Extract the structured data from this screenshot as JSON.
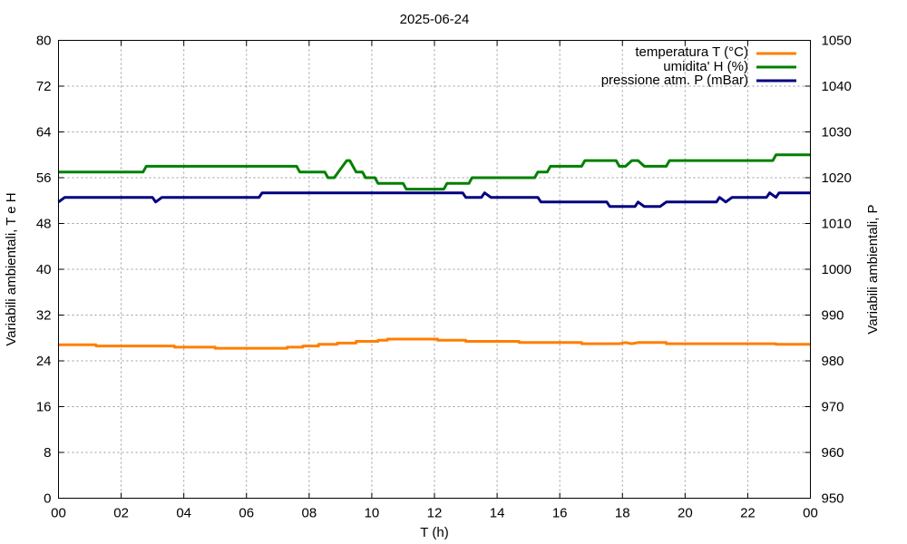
{
  "chart_data": {
    "type": "line",
    "title": "2025-06-24",
    "xlabel": "T (h)",
    "ylabel_left": "Variabili ambientali, T e H",
    "ylabel_right": "Variabili ambientali, P",
    "xlim": [
      0,
      24
    ],
    "ylim_left": [
      0,
      80
    ],
    "ylim_right": [
      950,
      1050
    ],
    "x_ticks": [
      "00",
      "02",
      "04",
      "06",
      "08",
      "10",
      "12",
      "14",
      "16",
      "18",
      "20",
      "22",
      "00"
    ],
    "y_ticks_left": [
      "0",
      "8",
      "16",
      "24",
      "32",
      "40",
      "48",
      "56",
      "64",
      "72",
      "80"
    ],
    "y_ticks_right": [
      "950",
      "960",
      "970",
      "980",
      "990",
      "1000",
      "1010",
      "1020",
      "1030",
      "1040",
      "1050"
    ],
    "grid": true,
    "legend_position": "top-right",
    "series": [
      {
        "name": "temperatura T (°C)",
        "axis": "left",
        "color": "#ff7f00",
        "points": [
          [
            0.0,
            26.8
          ],
          [
            1.2,
            26.8
          ],
          [
            1.2,
            26.6
          ],
          [
            3.7,
            26.6
          ],
          [
            3.7,
            26.4
          ],
          [
            5.0,
            26.4
          ],
          [
            5.0,
            26.2
          ],
          [
            7.3,
            26.2
          ],
          [
            7.3,
            26.4
          ],
          [
            7.8,
            26.4
          ],
          [
            7.8,
            26.6
          ],
          [
            8.3,
            26.6
          ],
          [
            8.3,
            26.9
          ],
          [
            8.9,
            26.9
          ],
          [
            8.9,
            27.1
          ],
          [
            9.5,
            27.1
          ],
          [
            9.5,
            27.4
          ],
          [
            10.2,
            27.4
          ],
          [
            10.2,
            27.6
          ],
          [
            10.5,
            27.6
          ],
          [
            10.5,
            27.8
          ],
          [
            12.1,
            27.8
          ],
          [
            12.1,
            27.6
          ],
          [
            13.0,
            27.6
          ],
          [
            13.0,
            27.4
          ],
          [
            14.7,
            27.4
          ],
          [
            14.7,
            27.2
          ],
          [
            16.7,
            27.2
          ],
          [
            16.7,
            27.0
          ],
          [
            17.9,
            27.0
          ],
          [
            18.1,
            27.2
          ],
          [
            18.3,
            27.0
          ],
          [
            18.5,
            27.2
          ],
          [
            19.4,
            27.2
          ],
          [
            19.4,
            27.0
          ],
          [
            22.9,
            27.0
          ],
          [
            22.9,
            26.9
          ],
          [
            24.0,
            26.9
          ]
        ]
      },
      {
        "name": "umidita' H (%)",
        "axis": "left",
        "color": "#008000",
        "points": [
          [
            0.0,
            57.0
          ],
          [
            2.7,
            57.0
          ],
          [
            2.8,
            58.0
          ],
          [
            7.6,
            58.0
          ],
          [
            7.7,
            57.0
          ],
          [
            8.5,
            57.0
          ],
          [
            8.6,
            56.0
          ],
          [
            8.8,
            56.0
          ],
          [
            9.0,
            57.5
          ],
          [
            9.2,
            59.0
          ],
          [
            9.3,
            59.0
          ],
          [
            9.5,
            57.0
          ],
          [
            9.7,
            57.0
          ],
          [
            9.8,
            56.0
          ],
          [
            10.1,
            56.0
          ],
          [
            10.2,
            55.0
          ],
          [
            11.0,
            55.0
          ],
          [
            11.1,
            54.0
          ],
          [
            12.3,
            54.0
          ],
          [
            12.4,
            55.0
          ],
          [
            13.1,
            55.0
          ],
          [
            13.2,
            56.0
          ],
          [
            15.2,
            56.0
          ],
          [
            15.3,
            57.0
          ],
          [
            15.6,
            57.0
          ],
          [
            15.7,
            58.0
          ],
          [
            16.7,
            58.0
          ],
          [
            16.8,
            59.0
          ],
          [
            17.8,
            59.0
          ],
          [
            17.9,
            58.0
          ],
          [
            18.1,
            58.0
          ],
          [
            18.3,
            59.0
          ],
          [
            18.5,
            59.0
          ],
          [
            18.7,
            58.0
          ],
          [
            19.4,
            58.0
          ],
          [
            19.5,
            59.0
          ],
          [
            22.8,
            59.0
          ],
          [
            22.9,
            60.0
          ],
          [
            24.0,
            60.0
          ]
        ]
      },
      {
        "name": "pressione atm. P (mBar)",
        "axis": "right",
        "color": "#000080",
        "points": [
          [
            0.0,
            1014.7
          ],
          [
            0.2,
            1015.7
          ],
          [
            3.0,
            1015.7
          ],
          [
            3.1,
            1014.7
          ],
          [
            3.3,
            1015.7
          ],
          [
            6.4,
            1015.7
          ],
          [
            6.5,
            1016.7
          ],
          [
            12.9,
            1016.7
          ],
          [
            13.0,
            1015.7
          ],
          [
            13.5,
            1015.7
          ],
          [
            13.6,
            1016.7
          ],
          [
            13.8,
            1015.7
          ],
          [
            15.3,
            1015.7
          ],
          [
            15.4,
            1014.7
          ],
          [
            17.5,
            1014.7
          ],
          [
            17.6,
            1013.7
          ],
          [
            18.4,
            1013.7
          ],
          [
            18.5,
            1014.7
          ],
          [
            18.7,
            1013.7
          ],
          [
            19.2,
            1013.7
          ],
          [
            19.4,
            1014.7
          ],
          [
            21.0,
            1014.7
          ],
          [
            21.1,
            1015.7
          ],
          [
            21.3,
            1014.7
          ],
          [
            21.5,
            1015.7
          ],
          [
            22.6,
            1015.7
          ],
          [
            22.7,
            1016.7
          ],
          [
            22.9,
            1015.7
          ],
          [
            23.0,
            1016.7
          ],
          [
            24.0,
            1016.7
          ]
        ]
      }
    ]
  }
}
